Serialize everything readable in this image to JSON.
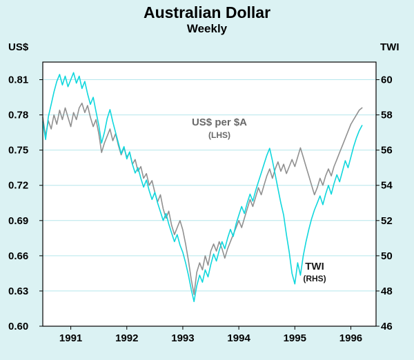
{
  "header": {
    "title": "Australian Dollar",
    "subtitle": "Weekly"
  },
  "axes": {
    "left_unit": "US$",
    "right_unit": "TWI",
    "left_ticks": [
      "0.81",
      "0.78",
      "0.75",
      "0.72",
      "0.69",
      "0.66",
      "0.63",
      "0.60"
    ],
    "right_ticks": [
      "60",
      "58",
      "56",
      "54",
      "52",
      "50",
      "48",
      "46"
    ],
    "x_ticks": [
      "1991",
      "1992",
      "1993",
      "1994",
      "1995",
      "1996"
    ]
  },
  "annotations": {
    "series1_label": "US$ per $A",
    "series1_sub": "(LHS)",
    "series2_label": "TWI",
    "series2_sub": "(RHS)"
  },
  "colors": {
    "background": "#dbf2f3",
    "plot_bg": "#ffffff",
    "grid": "#b5e6ec",
    "axis": "#000000",
    "text": "#000000"
  },
  "chart_data": {
    "type": "line",
    "title": "Australian Dollar",
    "subtitle": "Weekly",
    "grid": "horizontal",
    "x_start": 1990.5,
    "x_step": 0.05,
    "xlim": [
      1990.5,
      1996.45
    ],
    "x_tick_values": [
      1991,
      1992,
      1993,
      1994,
      1995,
      1996
    ],
    "left_axis": {
      "label": "US$",
      "ticks": [
        0.81,
        0.78,
        0.75,
        0.72,
        0.69,
        0.66,
        0.63,
        0.6
      ],
      "lim": [
        0.6,
        0.825
      ]
    },
    "right_axis": {
      "label": "TWI",
      "ticks": [
        60,
        58,
        56,
        54,
        52,
        50,
        48,
        46
      ],
      "lim": [
        46,
        61
      ]
    },
    "series": [
      {
        "name": "US$ per $A",
        "key": "usd_per_aud",
        "axis": "left",
        "color": "#909090",
        "values": [
          0.778,
          0.762,
          0.775,
          0.768,
          0.78,
          0.772,
          0.784,
          0.776,
          0.786,
          0.778,
          0.77,
          0.782,
          0.776,
          0.786,
          0.79,
          0.782,
          0.788,
          0.778,
          0.77,
          0.776,
          0.764,
          0.748,
          0.756,
          0.762,
          0.768,
          0.758,
          0.764,
          0.754,
          0.746,
          0.752,
          0.744,
          0.748,
          0.738,
          0.742,
          0.732,
          0.736,
          0.726,
          0.73,
          0.72,
          0.724,
          0.714,
          0.706,
          0.712,
          0.7,
          0.692,
          0.698,
          0.686,
          0.678,
          0.684,
          0.69,
          0.682,
          0.67,
          0.656,
          0.64,
          0.627,
          0.646,
          0.654,
          0.648,
          0.66,
          0.652,
          0.664,
          0.67,
          0.664,
          0.672,
          0.666,
          0.658,
          0.666,
          0.672,
          0.678,
          0.684,
          0.69,
          0.684,
          0.692,
          0.7,
          0.708,
          0.702,
          0.71,
          0.718,
          0.712,
          0.72,
          0.728,
          0.734,
          0.726,
          0.734,
          0.74,
          0.732,
          0.738,
          0.73,
          0.736,
          0.742,
          0.736,
          0.744,
          0.752,
          0.744,
          0.736,
          0.728,
          0.72,
          0.712,
          0.718,
          0.726,
          0.72,
          0.728,
          0.734,
          0.728,
          0.736,
          0.742,
          0.748,
          0.754,
          0.76,
          0.766,
          0.772,
          0.776,
          0.78,
          0.784,
          0.786
        ]
      },
      {
        "name": "TWI",
        "key": "twi",
        "axis": "right",
        "color": "#0fd7dd",
        "values": [
          57.6,
          56.6,
          57.9,
          58.6,
          59.3,
          59.9,
          60.3,
          59.7,
          60.2,
          59.6,
          60.0,
          60.4,
          59.8,
          60.2,
          59.5,
          59.9,
          59.2,
          58.6,
          59.0,
          58.2,
          57.4,
          56.4,
          57.0,
          57.8,
          58.3,
          57.6,
          57.0,
          56.4,
          55.8,
          56.2,
          55.5,
          55.9,
          55.2,
          54.7,
          55.0,
          54.4,
          53.9,
          54.3,
          53.7,
          53.2,
          53.6,
          53.0,
          52.5,
          52.0,
          52.4,
          51.8,
          51.3,
          50.8,
          51.2,
          50.6,
          50.2,
          49.6,
          48.9,
          48.1,
          47.4,
          48.3,
          48.9,
          48.5,
          49.2,
          48.8,
          49.5,
          50.1,
          49.7,
          50.3,
          50.8,
          50.4,
          51.0,
          51.5,
          51.1,
          51.8,
          52.3,
          52.8,
          52.4,
          53.0,
          53.5,
          53.1,
          53.7,
          54.2,
          54.7,
          55.2,
          55.7,
          56.1,
          55.4,
          54.6,
          53.8,
          53.0,
          52.3,
          51.2,
          50.2,
          49.0,
          48.4,
          49.6,
          48.9,
          50.0,
          50.8,
          51.5,
          52.1,
          52.6,
          53.0,
          53.4,
          52.9,
          53.5,
          54.0,
          53.5,
          54.1,
          54.6,
          54.2,
          54.8,
          55.4,
          55.0,
          55.6,
          56.2,
          56.7,
          57.1,
          57.4
        ]
      }
    ]
  }
}
